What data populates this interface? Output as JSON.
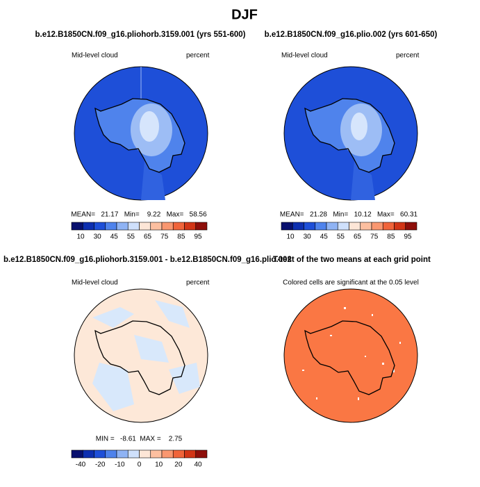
{
  "title": "DJF",
  "panels": [
    {
      "title": "b.e12.B1850CN.f09_g16.pliohorb.3159.001 (yrs 551-600)",
      "variable": "Mid-level cloud",
      "units": "percent",
      "stats": "MEAN=   21.17   Min=    9.22   Max=   58.56",
      "colorbar": [
        10,
        30,
        45,
        55,
        65,
        75,
        85,
        95
      ]
    },
    {
      "title": "b.e12.B1850CN.f09_g16.plio.002 (yrs 601-650)",
      "variable": "Mid-level cloud",
      "units": "percent",
      "stats": "MEAN=   21.28   Min=   10.12   Max=   60.31",
      "colorbar": [
        10,
        30,
        45,
        55,
        65,
        75,
        85,
        95
      ]
    },
    {
      "title": "b.e12.B1850CN.f09_g16.pliohorb.3159.001 - b.e12.B1850CN.f09_g16.plio.002",
      "variable": "Mid-level cloud",
      "units": "percent",
      "stats": "MIN =   -8.61  MAX =    2.75",
      "colorbar": [
        -40,
        -20,
        -10,
        0,
        10,
        20,
        40
      ]
    },
    {
      "title": "T-test of the two means at each grid point",
      "note": "Colored cells are significant at the 0.05 level"
    }
  ]
}
